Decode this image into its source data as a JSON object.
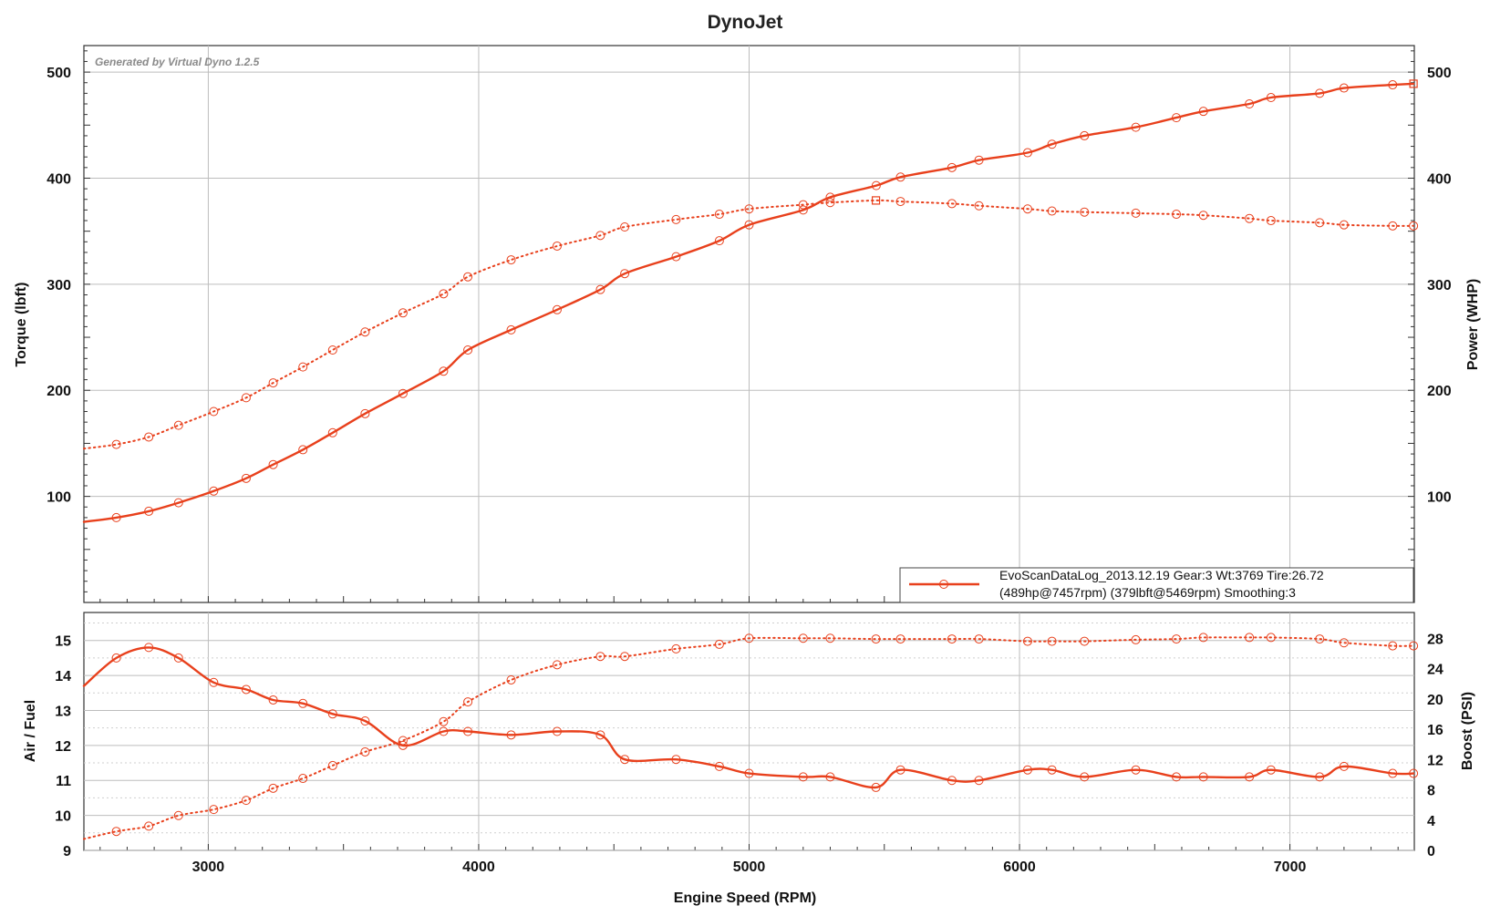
{
  "chart_data": [
    {
      "type": "line",
      "title": "DynoJet",
      "watermark": "Generated by Virtual Dyno 1.2.5",
      "xlabel": "Engine Speed (RPM)",
      "ylabel_left": "Torque (lbft)",
      "ylabel_right": "Power (WHP)",
      "xlim": [
        2540,
        7460
      ],
      "ylim": [
        0,
        525
      ],
      "x_ticks": [
        "3000",
        "4000",
        "5000",
        "6000",
        "7000"
      ],
      "y_ticks_left": [
        "100",
        "200",
        "300",
        "400",
        "500"
      ],
      "y_ticks_right": [
        "100",
        "200",
        "300",
        "400",
        "500"
      ],
      "grid": true,
      "legend": {
        "placement": "bottom-right",
        "line1": "EvoScanDataLog_2013.12.19 Gear:3 Wt:3769 Tire:26.72",
        "line2": "(489hp@7457rpm) (379lbft@5469rpm) Smoothing:3"
      },
      "series": [
        {
          "role": "power",
          "axis": "right",
          "style": "solid",
          "peak_x": 7457,
          "x": [
            2540,
            2660,
            2780,
            2890,
            3020,
            3140,
            3240,
            3350,
            3460,
            3580,
            3720,
            3870,
            3960,
            4120,
            4290,
            4450,
            4540,
            4730,
            4890,
            5000,
            5200,
            5300,
            5470,
            5560,
            5750,
            5850,
            6030,
            6120,
            6240,
            6430,
            6580,
            6680,
            6850,
            6930,
            7110,
            7200,
            7380,
            7457
          ],
          "values": [
            76,
            80,
            86,
            94,
            105,
            117,
            130,
            144,
            160,
            178,
            197,
            218,
            238,
            257,
            276,
            295,
            310,
            326,
            341,
            356,
            370,
            382,
            393,
            401,
            410,
            417,
            424,
            432,
            440,
            448,
            457,
            463,
            470,
            476,
            480,
            485,
            488,
            489
          ]
        },
        {
          "role": "torque",
          "axis": "left",
          "style": "dotted",
          "peak_x": 5469,
          "x": [
            2540,
            2660,
            2780,
            2890,
            3020,
            3140,
            3240,
            3350,
            3460,
            3580,
            3720,
            3870,
            3960,
            4120,
            4290,
            4450,
            4540,
            4730,
            4890,
            5000,
            5200,
            5300,
            5469,
            5560,
            5750,
            5850,
            6030,
            6120,
            6240,
            6430,
            6580,
            6680,
            6850,
            6930,
            7110,
            7200,
            7380,
            7457
          ],
          "values": [
            145,
            149,
            156,
            167,
            180,
            193,
            207,
            222,
            238,
            255,
            273,
            291,
            307,
            323,
            336,
            346,
            354,
            361,
            366,
            371,
            375,
            377,
            379,
            378,
            376,
            374,
            371,
            369,
            368,
            367,
            366,
            365,
            362,
            360,
            358,
            356,
            355,
            355
          ]
        }
      ]
    },
    {
      "type": "line",
      "ylabel_left": "Air / Fuel",
      "ylabel_right": "Boost (PSI)",
      "xlim": [
        2540,
        7460
      ],
      "ylim_left": [
        9,
        15.8
      ],
      "ylim_right": [
        0,
        31.4
      ],
      "y_ticks_left": [
        "9",
        "10",
        "11",
        "12",
        "13",
        "14",
        "15"
      ],
      "y_ticks_right": [
        "0",
        "4",
        "8",
        "12",
        "16",
        "20",
        "24",
        "28"
      ],
      "grid": true,
      "series": [
        {
          "role": "air_fuel",
          "axis": "left",
          "style": "solid",
          "x": [
            2540,
            2660,
            2780,
            2890,
            3020,
            3140,
            3240,
            3350,
            3460,
            3580,
            3720,
            3870,
            3960,
            4120,
            4290,
            4450,
            4540,
            4730,
            4890,
            5000,
            5200,
            5300,
            5469,
            5560,
            5750,
            5850,
            6030,
            6120,
            6240,
            6430,
            6580,
            6680,
            6850,
            6930,
            7110,
            7200,
            7380,
            7457
          ],
          "values": [
            13.7,
            14.5,
            14.8,
            14.5,
            13.8,
            13.6,
            13.3,
            13.2,
            12.9,
            12.7,
            12.0,
            12.4,
            12.4,
            12.3,
            12.4,
            12.3,
            11.6,
            11.6,
            11.4,
            11.2,
            11.1,
            11.1,
            10.8,
            11.3,
            11.0,
            11.0,
            11.3,
            11.3,
            11.1,
            11.3,
            11.1,
            11.1,
            11.1,
            11.3,
            11.1,
            11.4,
            11.2,
            11.2
          ]
        },
        {
          "role": "boost",
          "axis": "right",
          "style": "dotted",
          "x": [
            2540,
            2660,
            2780,
            2890,
            3020,
            3140,
            3240,
            3350,
            3460,
            3580,
            3720,
            3870,
            3960,
            4120,
            4290,
            4450,
            4540,
            4730,
            4890,
            5000,
            5200,
            5300,
            5469,
            5560,
            5750,
            5850,
            6030,
            6120,
            6240,
            6430,
            6580,
            6680,
            6850,
            6930,
            7110,
            7200,
            7380,
            7457
          ],
          "values": [
            1.5,
            2.5,
            3.2,
            4.6,
            5.4,
            6.6,
            8.2,
            9.5,
            11.2,
            13.0,
            14.5,
            17.0,
            19.6,
            22.5,
            24.5,
            25.6,
            25.6,
            26.6,
            27.2,
            28.0,
            28.0,
            28.0,
            27.9,
            27.9,
            27.9,
            27.9,
            27.6,
            27.6,
            27.6,
            27.8,
            27.9,
            28.1,
            28.1,
            28.1,
            27.9,
            27.4,
            27.0,
            27.0
          ]
        }
      ]
    }
  ]
}
